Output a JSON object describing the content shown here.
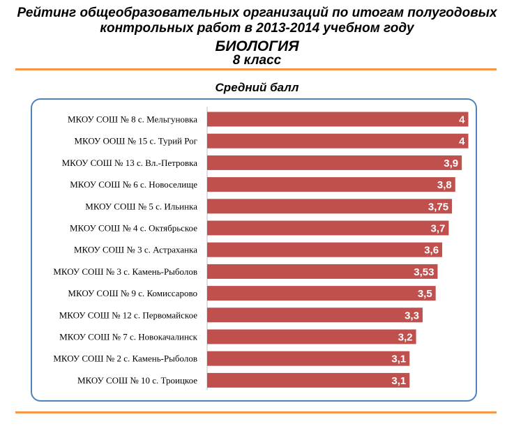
{
  "header": {
    "line1": "Рейтинг общеобразовательных  организаций по итогам полугодовых",
    "line2": "контрольных работ в 2013-2014 учебном году",
    "subject": "БИОЛОГИЯ",
    "grade": "8 класс"
  },
  "colors": {
    "bar": "#c0504d",
    "frame": "#4f81bd",
    "rule": "#f79646"
  },
  "chart_data": {
    "type": "bar",
    "orientation": "horizontal",
    "title": "Средний балл",
    "categories": [
      "МКОУ СОШ № 8 с. Мельгуновка",
      "МКОУ ООШ № 15 с. Турий Рог",
      "МКОУ СОШ № 13 с. Вл.-Петровка",
      "МКОУ СОШ № 6 с. Новоселище",
      "МКОУ СОШ № 5 с. Ильинка",
      "МКОУ СОШ № 4 с. Октябрьское",
      "МКОУ СОШ № 3 с. Астраханка",
      "МКОУ СОШ № 3 с. Камень-Рыболов",
      "МКОУ СОШ № 9 с. Комиссарово",
      "МКОУ СОШ № 12 с. Первомайское",
      "МКОУ СОШ № 7 с. Новокачалинск",
      "МКОУ СОШ № 2 с. Камень-Рыболов",
      "МКОУ СОШ № 10 с. Троицкое"
    ],
    "values": [
      4,
      4,
      3.9,
      3.8,
      3.75,
      3.7,
      3.6,
      3.53,
      3.5,
      3.3,
      3.2,
      3.1,
      3.1
    ],
    "value_labels": [
      "4",
      "4",
      "3,9",
      "3,8",
      "3,75",
      "3,7",
      "3,6",
      "3,53",
      "3,5",
      "3,3",
      "3,2",
      "3,1",
      "3,1"
    ],
    "xlim": [
      0,
      4
    ],
    "grid": false,
    "legend": "none"
  }
}
